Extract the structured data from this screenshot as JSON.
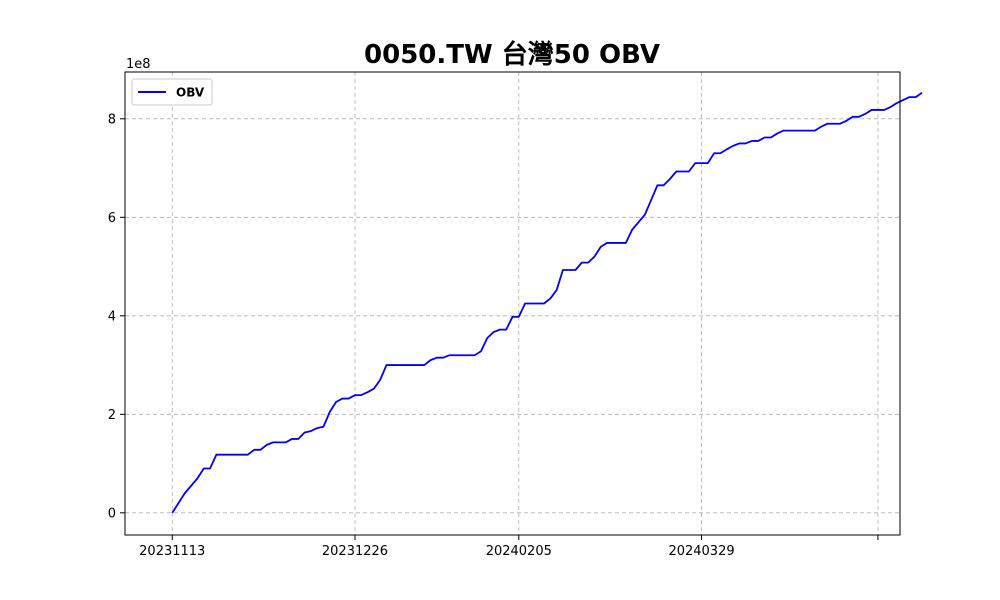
{
  "chart_data": {
    "type": "line",
    "title": "0050.TW 台灣50 OBV",
    "xlabel": "",
    "ylabel": "",
    "y_offset_label": "1e8",
    "x_tick_labels": [
      "20231113",
      "20231226",
      "20240205",
      "20240329",
      ""
    ],
    "x_tick_index": [
      0,
      29,
      55,
      84,
      112
    ],
    "xlim_index": [
      -7.5,
      115.5
    ],
    "y_ticks": [
      0,
      2,
      4,
      6,
      8
    ],
    "y_tick_labels": [
      "0",
      "2",
      "4",
      "6",
      "8"
    ],
    "ylim": [
      -0.45,
      8.95
    ],
    "y_unit_multiplier": 100000000,
    "grid": true,
    "legend_position": "top-left",
    "series_color": "#0000ff",
    "series": [
      {
        "name": "OBV",
        "values": [
          0.0,
          0.2,
          0.4,
          0.55,
          0.7,
          0.9,
          0.9,
          1.18,
          1.18,
          1.18,
          1.18,
          1.18,
          1.18,
          1.28,
          1.28,
          1.38,
          1.43,
          1.43,
          1.43,
          1.5,
          1.5,
          1.63,
          1.66,
          1.72,
          1.75,
          2.05,
          2.25,
          2.32,
          2.32,
          2.39,
          2.39,
          2.45,
          2.52,
          2.7,
          3.0,
          3.0,
          3.0,
          3.0,
          3.0,
          3.0,
          3.0,
          3.1,
          3.15,
          3.15,
          3.2,
          3.2,
          3.2,
          3.2,
          3.2,
          3.28,
          3.55,
          3.67,
          3.72,
          3.72,
          3.98,
          3.98,
          4.25,
          4.25,
          4.25,
          4.25,
          4.35,
          4.52,
          4.93,
          4.93,
          4.93,
          5.08,
          5.08,
          5.2,
          5.4,
          5.48,
          5.48,
          5.48,
          5.48,
          5.75,
          5.9,
          6.05,
          6.35,
          6.65,
          6.65,
          6.78,
          6.93,
          6.93,
          6.93,
          7.1,
          7.1,
          7.1,
          7.3,
          7.3,
          7.38,
          7.45,
          7.5,
          7.5,
          7.55,
          7.55,
          7.62,
          7.62,
          7.7,
          7.76,
          7.76,
          7.76,
          7.76,
          7.76,
          7.76,
          7.84,
          7.9,
          7.9,
          7.9,
          7.96,
          8.04,
          8.04,
          8.1,
          8.18,
          8.18,
          8.18,
          8.24,
          8.32,
          8.38,
          8.44,
          8.44,
          8.53
        ]
      }
    ]
  }
}
